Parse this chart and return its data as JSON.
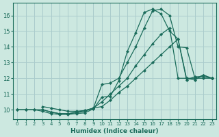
{
  "xlabel": "Humidex (Indice chaleur)",
  "xlim": [
    -0.5,
    23.5
  ],
  "ylim": [
    9.4,
    16.8
  ],
  "yticks": [
    10,
    11,
    12,
    13,
    14,
    15,
    16
  ],
  "xticks": [
    0,
    1,
    2,
    3,
    4,
    5,
    6,
    7,
    8,
    9,
    10,
    11,
    12,
    13,
    14,
    15,
    16,
    17,
    18,
    19,
    20,
    21,
    22,
    23
  ],
  "bg_color": "#cce8e0",
  "grid_color": "#aacccc",
  "line_color": "#1a6b5a",
  "line1_x": [
    0,
    1,
    2,
    3,
    4,
    5,
    6,
    7,
    8,
    9,
    10,
    11,
    12,
    13,
    14,
    15,
    16,
    17,
    18,
    19,
    20,
    21,
    22,
    23
  ],
  "line1_y": [
    10.0,
    10.0,
    10.0,
    9.9,
    9.75,
    9.7,
    9.7,
    9.75,
    9.8,
    10.05,
    10.8,
    10.85,
    11.85,
    13.7,
    14.9,
    16.2,
    16.4,
    16.1,
    15.0,
    14.5,
    12.0,
    11.9,
    12.2,
    12.0
  ],
  "line2_x": [
    0,
    1,
    2,
    3,
    4,
    5,
    6,
    7,
    8,
    9,
    10,
    11,
    12,
    13,
    14,
    15,
    16,
    17,
    18,
    19,
    20,
    21,
    22,
    23
  ],
  "line2_y": [
    10.0,
    10.0,
    10.0,
    10.0,
    9.85,
    9.75,
    9.75,
    9.8,
    9.9,
    10.1,
    11.6,
    11.7,
    12.0,
    13.0,
    14.0,
    15.2,
    16.3,
    16.4,
    16.0,
    14.0,
    13.95,
    12.0,
    12.2,
    12.0
  ],
  "line3_x": [
    3,
    4,
    5,
    6,
    7,
    8,
    9,
    10,
    11,
    12,
    13,
    14,
    15,
    16,
    17,
    18,
    19,
    20,
    21,
    22,
    23
  ],
  "line3_y": [
    10.0,
    9.85,
    9.75,
    9.75,
    9.85,
    9.95,
    10.1,
    10.5,
    11.0,
    11.5,
    12.0,
    12.8,
    13.5,
    14.2,
    14.8,
    15.2,
    12.0,
    12.0,
    12.0,
    12.0,
    12.0
  ],
  "line4_x": [
    3,
    4,
    5,
    6,
    7,
    8,
    9,
    10,
    11,
    12,
    13,
    14,
    15,
    16,
    17,
    18,
    19,
    20,
    21,
    22,
    23
  ],
  "line4_y": [
    10.2,
    10.1,
    10.0,
    9.9,
    9.9,
    9.95,
    10.1,
    10.2,
    10.6,
    11.1,
    11.5,
    12.0,
    12.5,
    13.0,
    13.5,
    14.0,
    14.5,
    11.9,
    12.1,
    12.1,
    12.0
  ]
}
